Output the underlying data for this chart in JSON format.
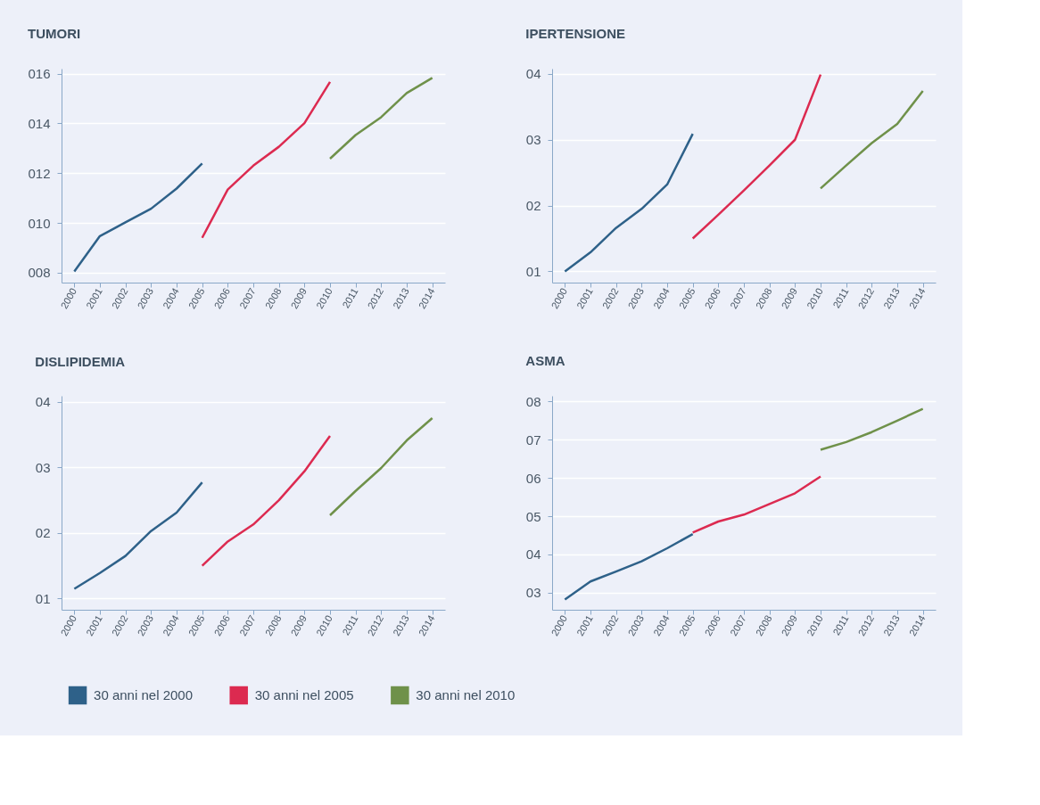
{
  "chart_data": [
    {
      "type": "line",
      "title": "TUMORI",
      "categories": [
        "2000",
        "2001",
        "2002",
        "2003",
        "2004",
        "2005",
        "2006",
        "2007",
        "2008",
        "2009",
        "2010",
        "2011",
        "2012",
        "2013",
        "2014"
      ],
      "ylim": [
        7.6,
        16.2
      ],
      "yticks": [
        {
          "value": 8,
          "label": "008"
        },
        {
          "value": 10,
          "label": "010"
        },
        {
          "value": 12,
          "label": "012"
        },
        {
          "value": 14,
          "label": "014"
        },
        {
          "value": 16,
          "label": "016"
        }
      ],
      "grid": "y",
      "legend": "bottom",
      "series": [
        {
          "name": "30 anni nel 2000",
          "color": "#2e6189",
          "values": [
            8.05,
            9.47,
            10.02,
            10.57,
            11.38,
            12.39,
            null,
            null,
            null,
            null,
            null,
            null,
            null,
            null,
            null
          ]
        },
        {
          "name": "30 anni nel 2005",
          "color": "#dc2a50",
          "values": [
            null,
            null,
            null,
            null,
            null,
            9.4,
            11.34,
            12.3,
            13.06,
            14.01,
            15.67,
            null,
            null,
            null,
            null
          ]
        },
        {
          "name": "30 anni nel 2010",
          "color": "#6f914a",
          "values": [
            null,
            null,
            null,
            null,
            null,
            null,
            null,
            null,
            null,
            null,
            12.58,
            13.53,
            14.25,
            15.22,
            15.83
          ]
        }
      ]
    },
    {
      "type": "line",
      "title": "IPERTENSIONE",
      "categories": [
        "2000",
        "2001",
        "2002",
        "2003",
        "2004",
        "2005",
        "2006",
        "2007",
        "2008",
        "2009",
        "2010",
        "2011",
        "2012",
        "2013",
        "2014"
      ],
      "ylim": [
        0.83,
        4.08
      ],
      "yticks": [
        {
          "value": 1,
          "label": "01"
        },
        {
          "value": 2,
          "label": "02"
        },
        {
          "value": 3,
          "label": "03"
        },
        {
          "value": 4,
          "label": "04"
        }
      ],
      "grid": "y",
      "series": [
        {
          "color": "#2e6189",
          "values": [
            1.0,
            1.29,
            1.66,
            1.95,
            2.32,
            3.09,
            null,
            null,
            null,
            null,
            null,
            null,
            null,
            null,
            null
          ]
        },
        {
          "color": "#dc2a50",
          "values": [
            null,
            null,
            null,
            null,
            null,
            1.5,
            1.86,
            2.23,
            2.61,
            3.0,
            3.99,
            null,
            null,
            null,
            null
          ]
        },
        {
          "color": "#6f914a",
          "values": [
            null,
            null,
            null,
            null,
            null,
            null,
            null,
            null,
            null,
            null,
            2.26,
            2.61,
            2.95,
            3.24,
            3.74
          ]
        }
      ]
    },
    {
      "type": "line",
      "title": "DISLIPIDEMIA",
      "categories": [
        "2000",
        "2001",
        "2002",
        "2003",
        "2004",
        "2005",
        "2006",
        "2007",
        "2008",
        "2009",
        "2010",
        "2011",
        "2012",
        "2013",
        "2014"
      ],
      "ylim": [
        0.83,
        4.09
      ],
      "yticks": [
        {
          "value": 1,
          "label": "01"
        },
        {
          "value": 2,
          "label": "02"
        },
        {
          "value": 3,
          "label": "03"
        },
        {
          "value": 4,
          "label": "04"
        }
      ],
      "grid": "y",
      "series": [
        {
          "color": "#2e6189",
          "values": [
            1.15,
            1.39,
            1.65,
            2.03,
            2.31,
            2.77,
            null,
            null,
            null,
            null,
            null,
            null,
            null,
            null,
            null
          ]
        },
        {
          "color": "#dc2a50",
          "values": [
            null,
            null,
            null,
            null,
            null,
            1.5,
            1.87,
            2.13,
            2.5,
            2.94,
            3.48,
            null,
            null,
            null,
            null
          ]
        },
        {
          "color": "#6f914a",
          "values": [
            null,
            null,
            null,
            null,
            null,
            null,
            null,
            null,
            null,
            null,
            2.27,
            2.64,
            2.99,
            3.41,
            3.75
          ]
        }
      ]
    },
    {
      "type": "line",
      "title": "ASMA",
      "categories": [
        "2000",
        "2001",
        "2002",
        "2003",
        "2004",
        "2005",
        "2006",
        "2007",
        "2008",
        "2009",
        "2010",
        "2011",
        "2012",
        "2013",
        "2014"
      ],
      "ylim": [
        2.55,
        8.15
      ],
      "yticks": [
        {
          "value": 3,
          "label": "03"
        },
        {
          "value": 4,
          "label": "04"
        },
        {
          "value": 5,
          "label": "05"
        },
        {
          "value": 6,
          "label": "06"
        },
        {
          "value": 7,
          "label": "07"
        },
        {
          "value": 8,
          "label": "08"
        }
      ],
      "grid": "y",
      "series": [
        {
          "color": "#2e6189",
          "values": [
            2.82,
            3.29,
            3.55,
            3.82,
            4.16,
            4.53,
            null,
            null,
            null,
            null,
            null,
            null,
            null,
            null,
            null
          ]
        },
        {
          "color": "#dc2a50",
          "values": [
            null,
            null,
            null,
            null,
            null,
            4.57,
            4.86,
            5.04,
            5.32,
            5.6,
            6.04,
            null,
            null,
            null,
            null
          ]
        },
        {
          "color": "#6f914a",
          "values": [
            null,
            null,
            null,
            null,
            null,
            null,
            null,
            null,
            null,
            null,
            6.74,
            6.94,
            7.2,
            7.5,
            7.81
          ]
        }
      ]
    }
  ]
}
